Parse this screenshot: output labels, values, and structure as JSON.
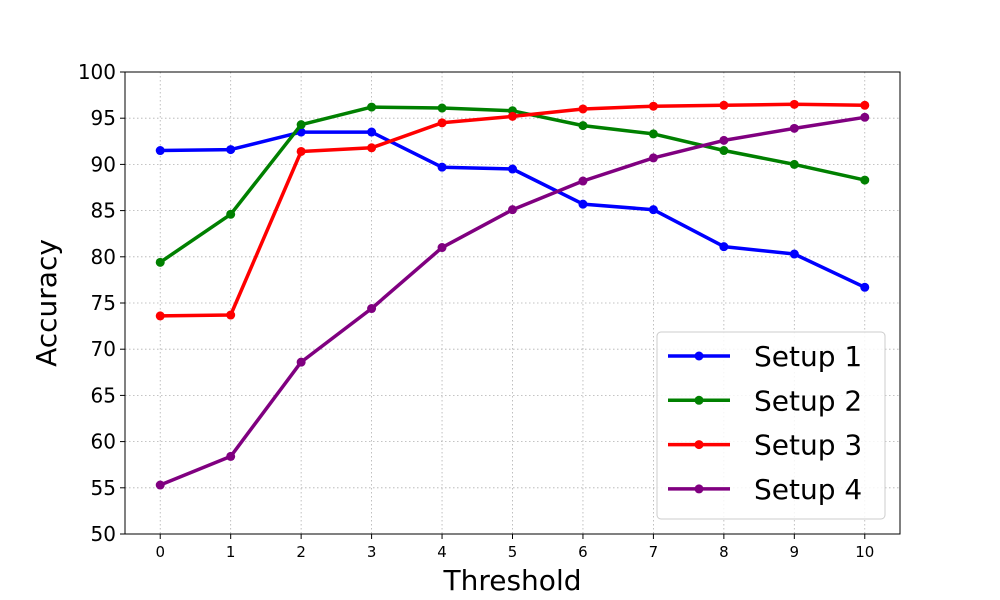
{
  "chart_data": {
    "type": "line",
    "title": "",
    "xlabel": "Threshold",
    "ylabel": "Accuracy",
    "x": [
      0,
      1,
      2,
      3,
      4,
      5,
      6,
      7,
      8,
      9,
      10
    ],
    "x_tick_labels": [
      "0",
      "1",
      "2",
      "3",
      "4",
      "5",
      "6",
      "7",
      "8",
      "9",
      "10"
    ],
    "xlim": [
      -0.5,
      10.5
    ],
    "y_ticks": [
      50,
      55,
      60,
      65,
      70,
      75,
      80,
      85,
      90,
      95,
      100
    ],
    "y_tick_labels": [
      "50",
      "55",
      "60",
      "65",
      "70",
      "75",
      "80",
      "85",
      "90",
      "95",
      "100"
    ],
    "ylim": [
      50,
      100
    ],
    "grid": true,
    "grid_style": "dotted",
    "legend_position": "lower-right",
    "series": [
      {
        "name": "Setup 1",
        "color": "#0000ff",
        "marker": "circle",
        "values": [
          91.5,
          91.6,
          93.5,
          93.5,
          89.7,
          89.5,
          85.7,
          85.1,
          81.1,
          80.3,
          76.7
        ]
      },
      {
        "name": "Setup 2",
        "color": "#008000",
        "marker": "circle",
        "values": [
          79.4,
          84.6,
          94.3,
          96.2,
          96.1,
          95.8,
          94.2,
          93.3,
          91.5,
          90.0,
          88.3
        ]
      },
      {
        "name": "Setup 3",
        "color": "#ff0000",
        "marker": "circle",
        "values": [
          73.6,
          73.7,
          91.4,
          91.8,
          94.5,
          95.2,
          96.0,
          96.3,
          96.4,
          96.5,
          96.4
        ]
      },
      {
        "name": "Setup 4",
        "color": "#800080",
        "marker": "circle",
        "values": [
          55.3,
          58.4,
          68.6,
          74.4,
          81.0,
          85.1,
          88.2,
          90.7,
          92.6,
          93.9,
          95.1
        ]
      }
    ]
  }
}
